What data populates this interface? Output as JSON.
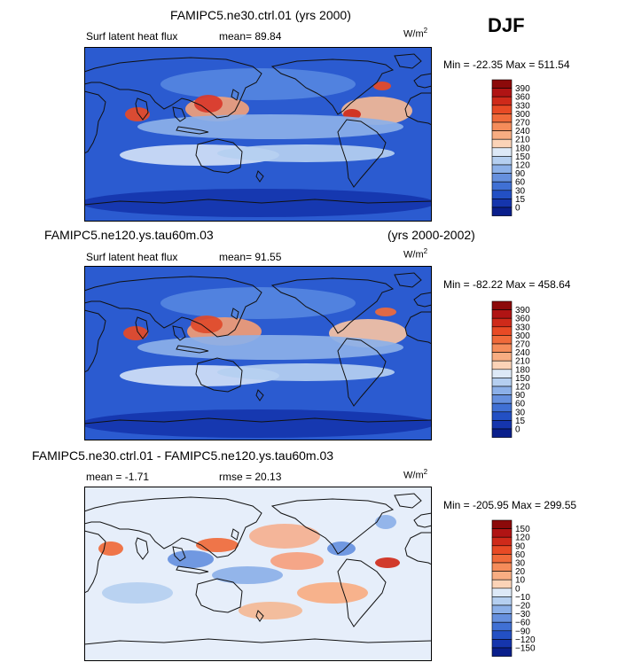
{
  "season": "DJF",
  "panels": [
    {
      "title_left": "FAMIPC5.ne30.ctrl.01 (yrs 2000)",
      "title_right": "",
      "variable": "Surf latent heat flux",
      "stat1": "mean=  89.84",
      "stat2": "",
      "units_base": "W/m",
      "units_exp": "2",
      "minmax": "Min = -22.35  Max = 511.54"
    },
    {
      "title_left": "FAMIPC5.ne120.ys.tau60m.03",
      "title_right": "(yrs 2000-2002)",
      "variable": "Surf latent heat flux",
      "stat1": "mean=  91.55",
      "stat2": "",
      "units_base": "W/m",
      "units_exp": "2",
      "minmax": "Min = -82.22  Max = 458.64"
    },
    {
      "title_left": "FAMIPC5.ne30.ctrl.01 - FAMIPC5.ne120.ys.tau60m.03",
      "title_right": "",
      "variable": "",
      "stat1": "mean =  -1.71",
      "stat2": "rmse =  20.13",
      "units_base": "W/m",
      "units_exp": "2",
      "minmax": "Min = -205.95  Max = 299.55"
    }
  ],
  "chart_data": [
    {
      "type": "heatmap",
      "title": "FAMIPC5.ne30.ctrl.01 (yrs 2000)",
      "variable": "Surf latent heat flux",
      "units": "W/m2",
      "mean": 89.84,
      "min": -22.35,
      "max": 511.54,
      "colorbar_levels": [
        "390",
        "360",
        "330",
        "300",
        "270",
        "240",
        "210",
        "180",
        "150",
        "120",
        "90",
        "60",
        "30",
        "15",
        "0"
      ],
      "colors": [
        "#8c0a0a",
        "#b01414",
        "#cf2a1a",
        "#e84a25",
        "#f06a3a",
        "#f58c5a",
        "#f8ad82",
        "#fbd3b7",
        "#dde9f7",
        "#b5cff0",
        "#8cb0e8",
        "#6690de",
        "#4070d4",
        "#2350c4",
        "#1535ad",
        "#0a1f8c"
      ]
    },
    {
      "type": "heatmap",
      "title": "FAMIPC5.ne120.ys.tau60m.03",
      "subtitle": "(yrs 2000-2002)",
      "variable": "Surf latent heat flux",
      "units": "W/m2",
      "mean": 91.55,
      "min": -82.22,
      "max": 458.64,
      "colorbar_levels": [
        "390",
        "360",
        "330",
        "300",
        "270",
        "240",
        "210",
        "180",
        "150",
        "120",
        "90",
        "60",
        "30",
        "15",
        "0"
      ],
      "colors": [
        "#8c0a0a",
        "#b01414",
        "#cf2a1a",
        "#e84a25",
        "#f06a3a",
        "#f58c5a",
        "#f8ad82",
        "#fbd3b7",
        "#dde9f7",
        "#b5cff0",
        "#8cb0e8",
        "#6690de",
        "#4070d4",
        "#2350c4",
        "#1535ad",
        "#0a1f8c"
      ]
    },
    {
      "type": "heatmap",
      "title": "FAMIPC5.ne30.ctrl.01 - FAMIPC5.ne120.ys.tau60m.03",
      "units": "W/m2",
      "mean": -1.71,
      "rmse": 20.13,
      "min": -205.95,
      "max": 299.55,
      "colorbar_levels": [
        "150",
        "120",
        "90",
        "60",
        "30",
        "20",
        "10",
        "0",
        "−10",
        "−20",
        "−30",
        "−60",
        "−90",
        "−120",
        "−150"
      ],
      "colors": [
        "#8c0a0a",
        "#b01414",
        "#cf2a1a",
        "#e84a25",
        "#f06a3a",
        "#f58c5a",
        "#f8ad82",
        "#fbd3b7",
        "#dde9f7",
        "#b5cff0",
        "#8cb0e8",
        "#6690de",
        "#4070d4",
        "#2350c4",
        "#1535ad",
        "#0a1f8c"
      ]
    }
  ]
}
